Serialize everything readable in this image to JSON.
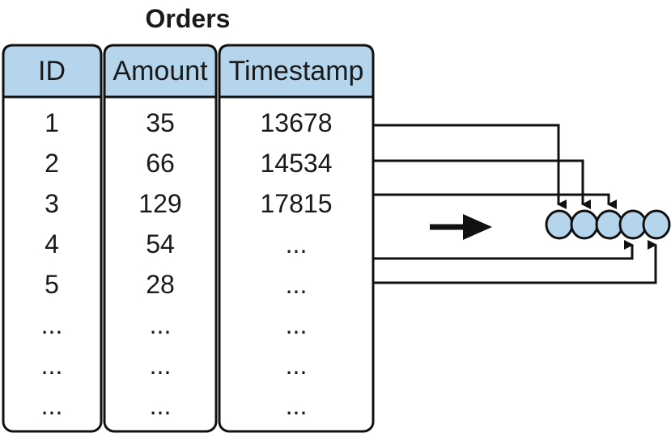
{
  "title": "Orders",
  "columns": [
    {
      "header": "ID"
    },
    {
      "header": "Amount"
    },
    {
      "header": "Timestamp"
    }
  ],
  "rows": [
    [
      "1",
      "35",
      "13678"
    ],
    [
      "2",
      "66",
      "14534"
    ],
    [
      "3",
      "129",
      "17815"
    ],
    [
      "4",
      "54",
      "..."
    ],
    [
      "5",
      "28",
      "..."
    ],
    [
      "...",
      "...",
      "..."
    ],
    [
      "...",
      "...",
      "..."
    ],
    [
      "...",
      "...",
      "..."
    ]
  ],
  "queue": {
    "length": 5
  },
  "colors": {
    "header_fill": "#b5d5ec",
    "queue_fill": "#b5d5ec",
    "stroke": "#111111"
  }
}
